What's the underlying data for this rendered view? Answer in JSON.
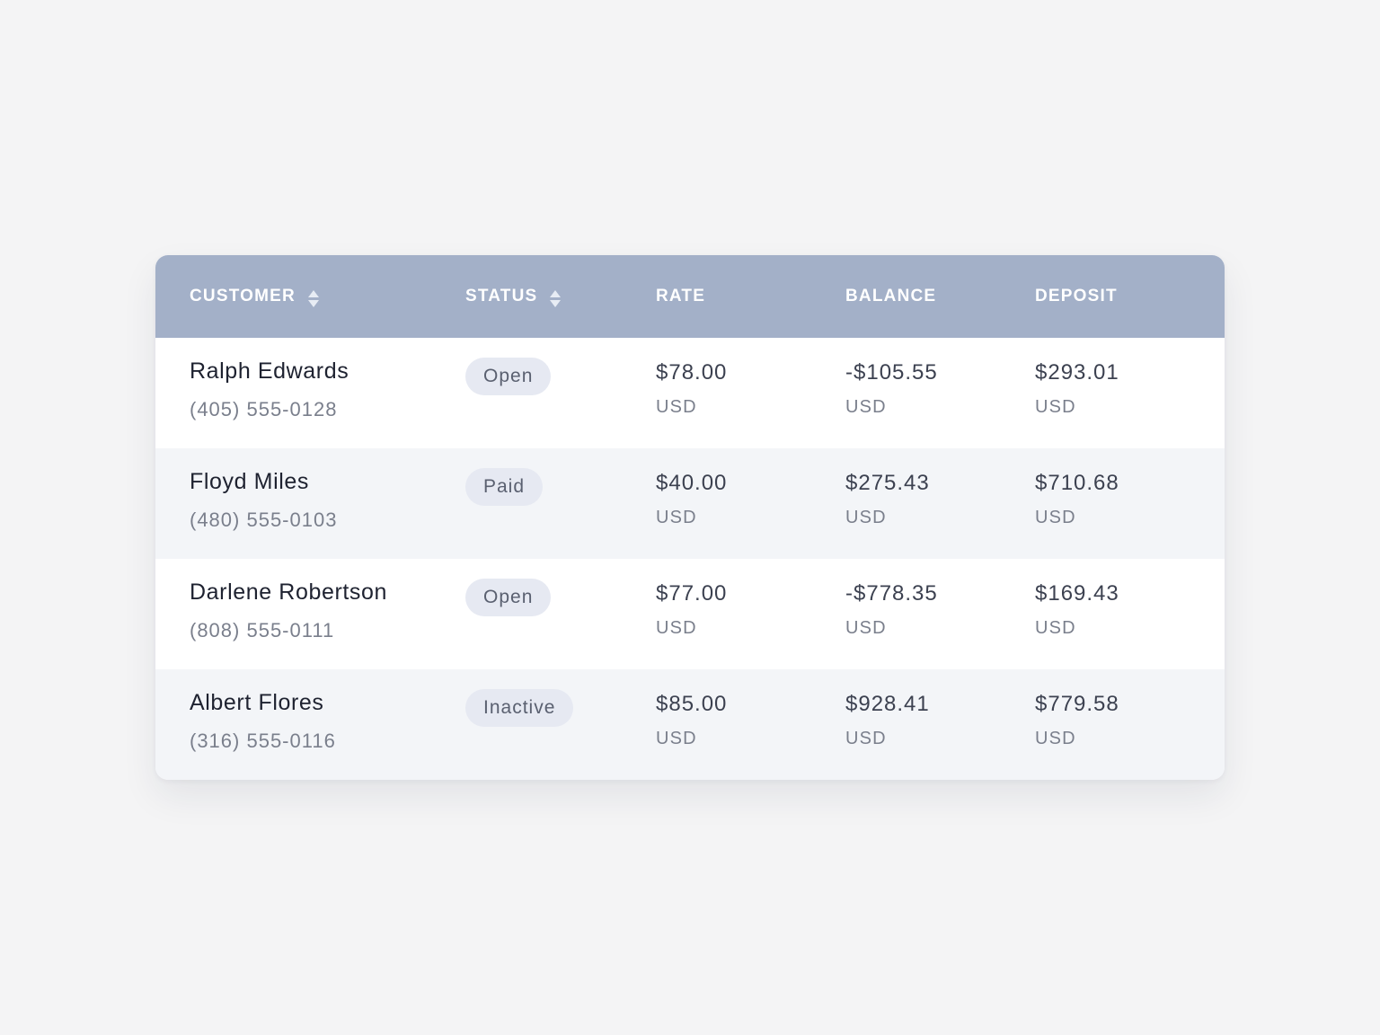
{
  "table": {
    "headers": {
      "customer": "CUSTOMER",
      "status": "STATUS",
      "rate": "RATE",
      "balance": "BALANCE",
      "deposit": "DEPOSIT"
    },
    "sortable_icon": "sort-arrows-icon",
    "colors": {
      "header_bg": "#a3b0c8",
      "row_alt_bg": "#f3f5f8",
      "badge_bg": "#e6e9f2",
      "page_bg": "#f4f4f5"
    },
    "rows": [
      {
        "name": "Ralph Edwards",
        "phone": "(405) 555-0128",
        "status": "Open",
        "rate": "$78.00",
        "rate_currency": "USD",
        "balance": "-$105.55",
        "balance_currency": "USD",
        "deposit": "$293.01",
        "deposit_currency": "USD"
      },
      {
        "name": "Floyd Miles",
        "phone": "(480) 555-0103",
        "status": "Paid",
        "rate": "$40.00",
        "rate_currency": "USD",
        "balance": "$275.43",
        "balance_currency": "USD",
        "deposit": "$710.68",
        "deposit_currency": "USD"
      },
      {
        "name": "Darlene Robertson",
        "phone": "(808) 555-0111",
        "status": "Open",
        "rate": "$77.00",
        "rate_currency": "USD",
        "balance": "-$778.35",
        "balance_currency": "USD",
        "deposit": "$169.43",
        "deposit_currency": "USD"
      },
      {
        "name": "Albert Flores",
        "phone": "(316) 555-0116",
        "status": "Inactive",
        "rate": "$85.00",
        "rate_currency": "USD",
        "balance": "$928.41",
        "balance_currency": "USD",
        "deposit": "$779.58",
        "deposit_currency": "USD"
      }
    ]
  }
}
